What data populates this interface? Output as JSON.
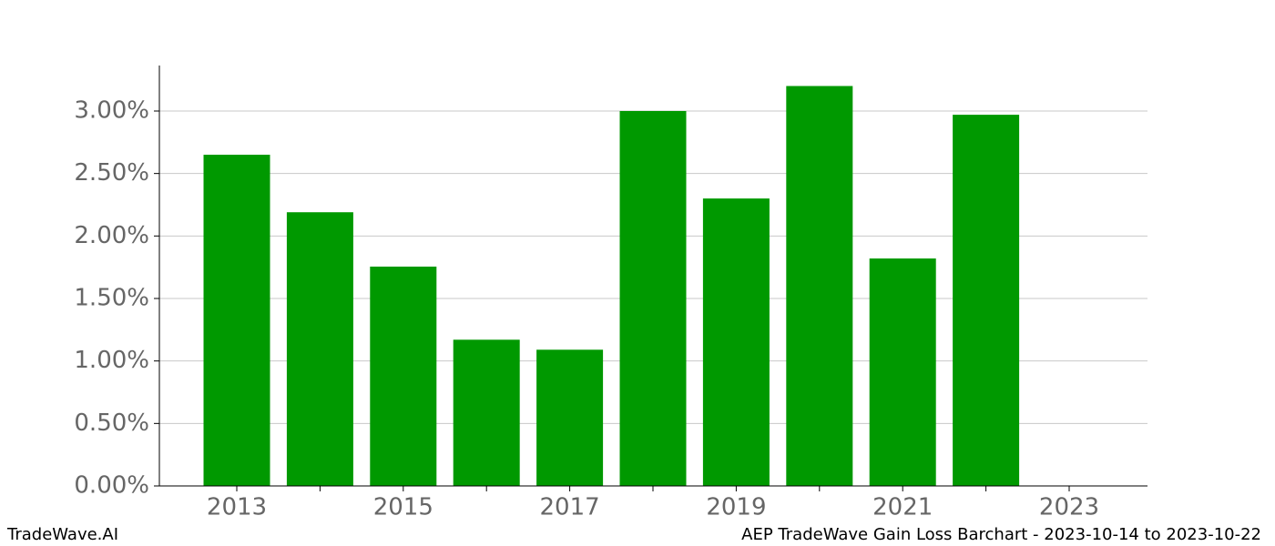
{
  "chart_data": {
    "type": "bar",
    "title": "AEP TradeWave Gain Loss Barchart - 2023-10-14 to 2023-10-22",
    "watermark": "TradeWave.AI",
    "categories": [
      "2013",
      null,
      "2015",
      null,
      "2017",
      null,
      "2019",
      null,
      "2021",
      null,
      "2023"
    ],
    "values": [
      2.65,
      2.19,
      1.755,
      1.17,
      1.09,
      3.0,
      2.3,
      3.2,
      1.82,
      2.97,
      null
    ],
    "color": "#009900",
    "ylim": [
      0,
      3.364
    ],
    "yticks": [
      {
        "value": 0,
        "label": "0.00%"
      },
      {
        "value": 0.5,
        "label": "0.50%"
      },
      {
        "value": 1,
        "label": "1.00%"
      },
      {
        "value": 1.5,
        "label": "1.50%"
      },
      {
        "value": 2,
        "label": "2.00%"
      },
      {
        "value": 2.5,
        "label": "2.50%"
      },
      {
        "value": 3,
        "label": "3.00%"
      }
    ],
    "grid": true
  }
}
